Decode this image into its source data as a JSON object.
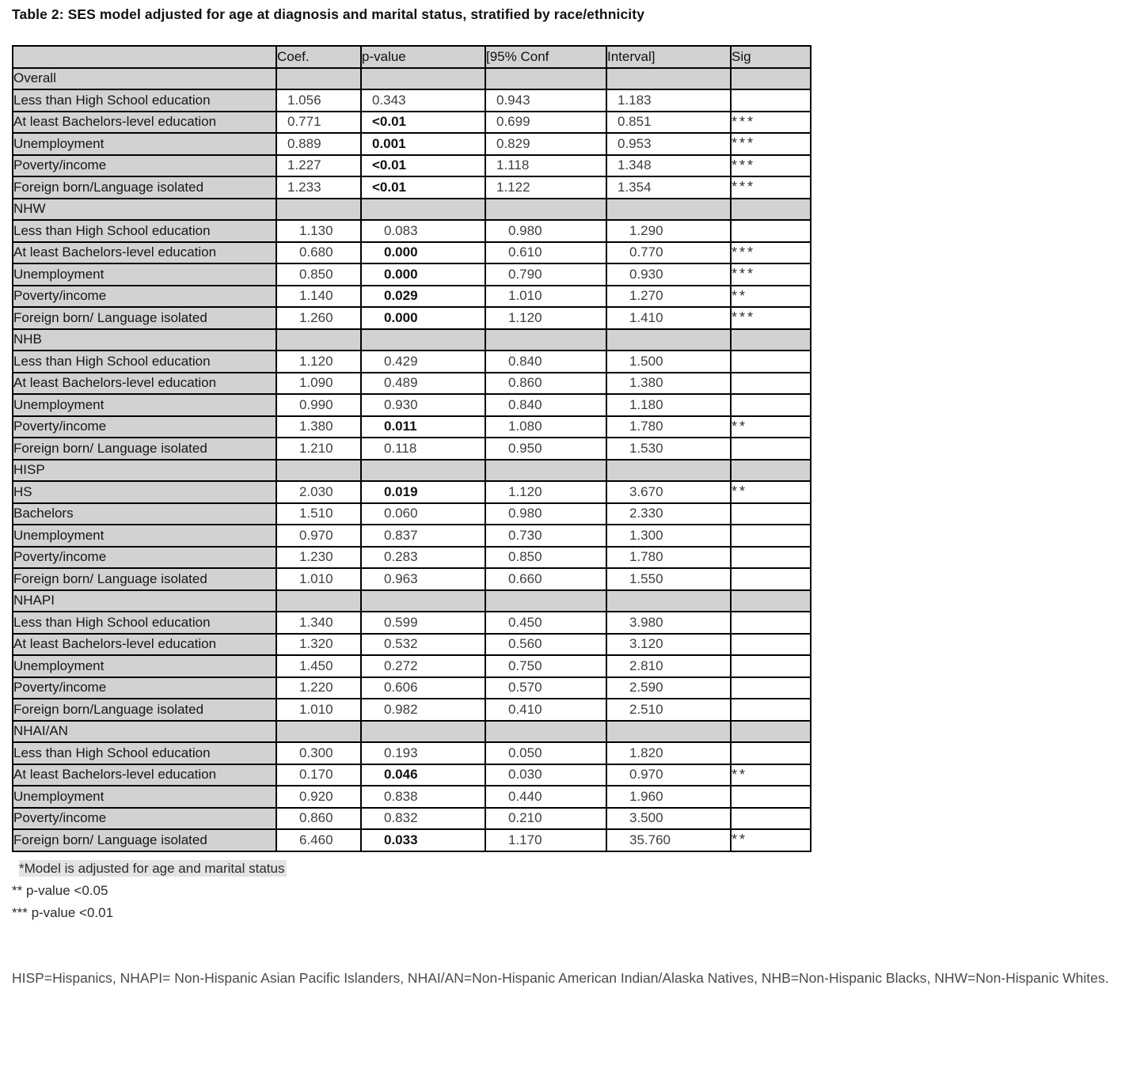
{
  "title": "Table 2: SES model adjusted for age at diagnosis and marital status, stratified by race/ethnicity",
  "table": {
    "headers": [
      "",
      "Coef.",
      "p-value",
      "[95% Conf",
      "Interval]",
      "Sig"
    ],
    "sections": [
      {
        "name": "Overall",
        "indent": "small",
        "rows": [
          {
            "label": "Less than High School education",
            "coef": "1.056",
            "p": "0.343",
            "p_bold": false,
            "ci_low": "0.943",
            "ci_high": "1.183",
            "sig": ""
          },
          {
            "label": "At least Bachelors-level education",
            "coef": "0.771",
            "p": "<0.01",
            "p_bold": true,
            "ci_low": "0.699",
            "ci_high": "0.851",
            "sig": "***"
          },
          {
            "label": "Unemployment",
            "coef": "0.889",
            "p": "0.001",
            "p_bold": true,
            "ci_low": "0.829",
            "ci_high": "0.953",
            "sig": "***"
          },
          {
            "label": "Poverty/income",
            "coef": "1.227",
            "p": "<0.01",
            "p_bold": true,
            "ci_low": "1.118",
            "ci_high": "1.348",
            "sig": "***"
          },
          {
            "label": "Foreign born/Language isolated",
            "coef": "1.233",
            "p": "<0.01",
            "p_bold": true,
            "ci_low": "1.122",
            "ci_high": "1.354",
            "sig": "***"
          }
        ]
      },
      {
        "name": "NHW",
        "indent": "large",
        "rows": [
          {
            "label": "Less than High School education",
            "coef": "1.130",
            "p": "0.083",
            "p_bold": false,
            "ci_low": "0.980",
            "ci_high": "1.290",
            "sig": ""
          },
          {
            "label": "At least Bachelors-level education",
            "coef": "0.680",
            "p": "0.000",
            "p_bold": true,
            "ci_low": "0.610",
            "ci_high": "0.770",
            "sig": "***"
          },
          {
            "label": "Unemployment",
            "coef": "0.850",
            "p": "0.000",
            "p_bold": true,
            "ci_low": "0.790",
            "ci_high": "0.930",
            "sig": "***"
          },
          {
            "label": "Poverty/income",
            "coef": "1.140",
            "p": "0.029",
            "p_bold": true,
            "ci_low": "1.010",
            "ci_high": "1.270",
            "sig": "**"
          },
          {
            "label": "Foreign born/ Language isolated",
            "coef": "1.260",
            "p": "0.000",
            "p_bold": true,
            "ci_low": "1.120",
            "ci_high": "1.410",
            "sig": "***"
          }
        ]
      },
      {
        "name": "NHB",
        "indent": "large",
        "rows": [
          {
            "label": "Less than High School education",
            "coef": "1.120",
            "p": "0.429",
            "p_bold": false,
            "ci_low": "0.840",
            "ci_high": "1.500",
            "sig": ""
          },
          {
            "label": "At least Bachelors-level education",
            "coef": "1.090",
            "p": "0.489",
            "p_bold": false,
            "ci_low": "0.860",
            "ci_high": "1.380",
            "sig": ""
          },
          {
            "label": "Unemployment",
            "coef": "0.990",
            "p": "0.930",
            "p_bold": false,
            "ci_low": "0.840",
            "ci_high": "1.180",
            "sig": ""
          },
          {
            "label": "Poverty/income",
            "coef": "1.380",
            "p": "0.011",
            "p_bold": true,
            "ci_low": "1.080",
            "ci_high": "1.780",
            "sig": "**"
          },
          {
            "label": "Foreign born/ Language isolated",
            "coef": "1.210",
            "p": "0.118",
            "p_bold": false,
            "ci_low": "0.950",
            "ci_high": "1.530",
            "sig": ""
          }
        ]
      },
      {
        "name": "HISP",
        "indent": "large",
        "rows": [
          {
            "label": "HS",
            "coef": "2.030",
            "p": "0.019",
            "p_bold": true,
            "ci_low": "1.120",
            "ci_high": "3.670",
            "sig": "**"
          },
          {
            "label": "Bachelors",
            "coef": "1.510",
            "p": "0.060",
            "p_bold": false,
            "ci_low": "0.980",
            "ci_high": "2.330",
            "sig": ""
          },
          {
            "label": "Unemployment",
            "coef": "0.970",
            "p": "0.837",
            "p_bold": false,
            "ci_low": "0.730",
            "ci_high": "1.300",
            "sig": ""
          },
          {
            "label": "Poverty/income",
            "coef": "1.230",
            "p": "0.283",
            "p_bold": false,
            "ci_low": "0.850",
            "ci_high": "1.780",
            "sig": ""
          },
          {
            "label": "Foreign born/ Language isolated",
            "coef": "1.010",
            "p": "0.963",
            "p_bold": false,
            "ci_low": "0.660",
            "ci_high": "1.550",
            "sig": ""
          }
        ]
      },
      {
        "name": "NHAPI",
        "indent": "large",
        "rows": [
          {
            "label": "Less than High School education",
            "coef": "1.340",
            "p": "0.599",
            "p_bold": false,
            "ci_low": "0.450",
            "ci_high": "3.980",
            "sig": ""
          },
          {
            "label": "At least Bachelors-level education",
            "coef": "1.320",
            "p": "0.532",
            "p_bold": false,
            "ci_low": "0.560",
            "ci_high": "3.120",
            "sig": ""
          },
          {
            "label": "Unemployment",
            "coef": "1.450",
            "p": "0.272",
            "p_bold": false,
            "ci_low": "0.750",
            "ci_high": "2.810",
            "sig": ""
          },
          {
            "label": "Poverty/income",
            "coef": "1.220",
            "p": "0.606",
            "p_bold": false,
            "ci_low": "0.570",
            "ci_high": "2.590",
            "sig": ""
          },
          {
            "label": "Foreign born/Language isolated",
            "coef": "1.010",
            "p": "0.982",
            "p_bold": false,
            "ci_low": "0.410",
            "ci_high": "2.510",
            "sig": ""
          }
        ]
      },
      {
        "name": "NHAI/AN",
        "indent": "large",
        "rows": [
          {
            "label": "Less than High School education",
            "coef": "0.300",
            "p": "0.193",
            "p_bold": false,
            "ci_low": "0.050",
            "ci_high": "1.820",
            "sig": ""
          },
          {
            "label": "At least Bachelors-level education",
            "coef": "0.170",
            "p": "0.046",
            "p_bold": true,
            "ci_low": "0.030",
            "ci_high": "0.970",
            "sig": "**"
          },
          {
            "label": "Unemployment",
            "coef": "0.920",
            "p": "0.838",
            "p_bold": false,
            "ci_low": "0.440",
            "ci_high": "1.960",
            "sig": ""
          },
          {
            "label": "Poverty/income",
            "coef": "0.860",
            "p": "0.832",
            "p_bold": false,
            "ci_low": "0.210",
            "ci_high": "3.500",
            "sig": ""
          },
          {
            "label": "Foreign born/ Language isolated",
            "coef": "6.460",
            "p": "0.033",
            "p_bold": true,
            "ci_low": "1.170",
            "ci_high": "35.760",
            "sig": "**"
          }
        ]
      }
    ]
  },
  "footnotes": {
    "model": "*Model is adjusted for age and marital status",
    "p05": "** p-value <0.05",
    "p01": "*** p-value <0.01"
  },
  "abbreviations": "HISP=Hispanics, NHAPI= Non-Hispanic Asian Pacific Islanders, NHAI/AN=Non-Hispanic American Indian/Alaska Natives, NHB=Non-Hispanic Blacks, NHW=Non-Hispanic Whites."
}
